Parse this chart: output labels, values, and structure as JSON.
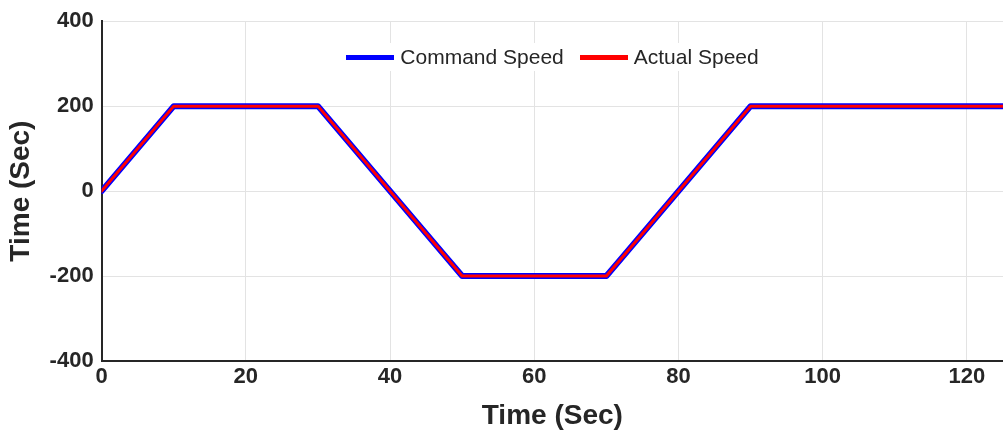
{
  "chart_data": {
    "type": "line",
    "xlabel": "Time (Sec)",
    "ylabel": "Time (Sec)",
    "x": [
      0,
      10,
      30,
      50,
      70,
      90,
      125
    ],
    "series": [
      {
        "name": "Command Speed",
        "color": "#0000ff",
        "values": [
          0,
          200,
          200,
          -200,
          -200,
          200,
          200
        ]
      },
      {
        "name": "Actual Speed",
        "color": "#ff0000",
        "values": [
          0,
          200,
          200,
          -200,
          -200,
          200,
          200
        ]
      }
    ],
    "xlim": [
      0,
      125
    ],
    "xticks": [
      0,
      20,
      40,
      60,
      80,
      100,
      120
    ],
    "ylim": [
      -400,
      400
    ],
    "yticks": [
      -400,
      -200,
      0,
      200,
      400
    ],
    "grid": true,
    "legend": "top",
    "marker": "none",
    "line_style": "solid"
  }
}
